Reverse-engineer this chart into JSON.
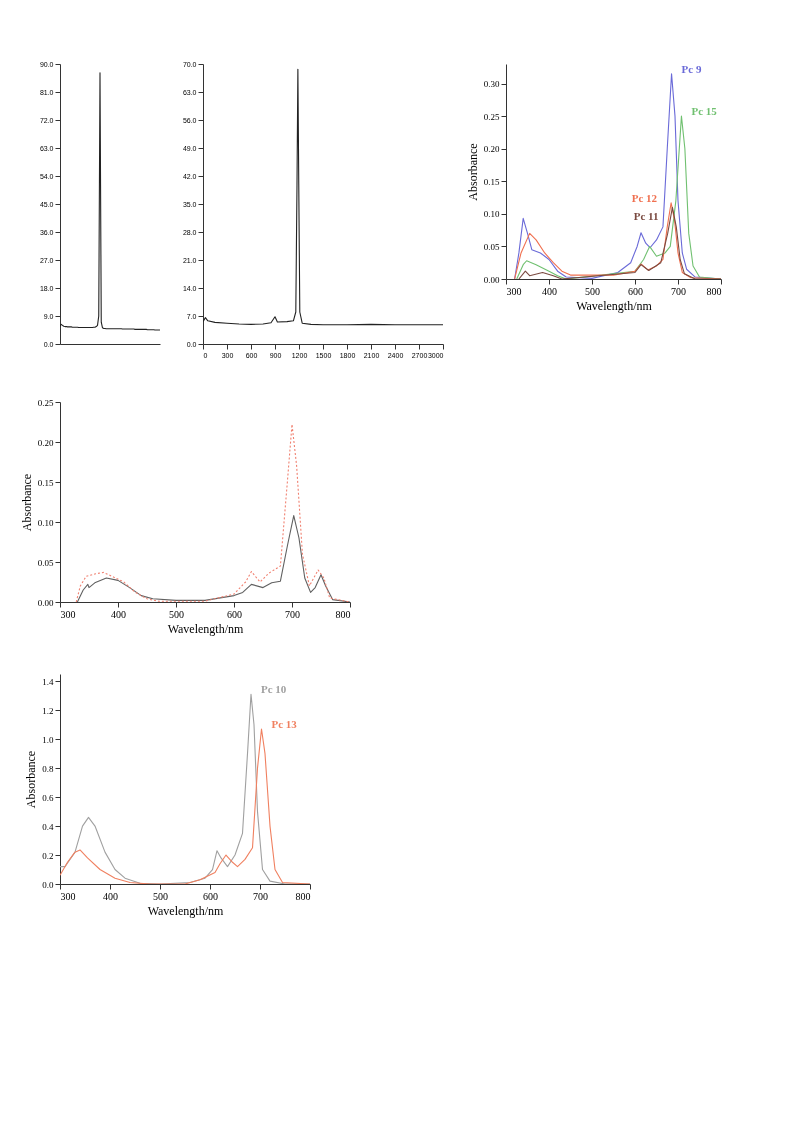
{
  "chart_data": [
    {
      "type": "line",
      "categories": [
        null,
        null,
        null,
        null,
        null,
        null,
        null,
        null,
        null,
        null,
        null,
        null,
        null,
        null,
        null,
        null,
        null,
        null,
        null,
        null,
        null,
        null,
        null,
        null,
        null,
        null,
        null,
        null,
        null,
        null,
        null,
        null,
        null,
        null,
        null,
        null,
        null,
        null,
        null,
        null,
        null,
        null,
        null,
        null,
        null,
        null,
        null,
        null,
        null,
        null,
        null,
        null,
        null,
        null,
        null,
        null,
        null,
        null,
        null,
        null,
        null,
        null,
        null,
        null,
        null,
        null,
        null,
        null,
        null,
        null,
        null,
        null,
        null,
        null,
        null,
        null,
        null,
        null,
        null,
        null,
        null
      ],
      "ylim": [
        0,
        90
      ],
      "yticks": [
        {
          "value": 0,
          "label": "0.0"
        },
        {
          "value": 9,
          "label": "9.0"
        },
        {
          "value": 18,
          "label": "18.0"
        },
        {
          "value": 27,
          "label": "27.0"
        },
        {
          "value": 36,
          "label": "36.0"
        },
        {
          "value": 45,
          "label": "45.0"
        },
        {
          "value": 54,
          "label": "54.0"
        },
        {
          "value": 63,
          "label": "63.0"
        },
        {
          "value": 72,
          "label": "72.0"
        },
        {
          "value": 81,
          "label": "81.0"
        },
        {
          "value": 90,
          "label": "90.0"
        }
      ],
      "tick_labels": "y",
      "series": [
        {
          "color": "#222222",
          "values": [
            5.8,
            6.3,
            6.0,
            5.7,
            5.6,
            5.6,
            5.5,
            5.5,
            5.5,
            5.5,
            5.4,
            5.4,
            5.4,
            5.4,
            5.4,
            5.3,
            5.3,
            5.3,
            5.3,
            5.3,
            5.3,
            5.3,
            5.3,
            5.3,
            5.3,
            5.3,
            5.3,
            5.4,
            5.4,
            5.6,
            6.0,
            9.0,
            87.2,
            7.0,
            5.2,
            5.0,
            5.0,
            4.9,
            4.9,
            4.9,
            4.9,
            4.9,
            4.9,
            4.9,
            4.9,
            4.9,
            4.9,
            4.9,
            4.9,
            4.9,
            4.8,
            4.8,
            4.8,
            4.8,
            4.8,
            4.8,
            4.8,
            4.8,
            4.8,
            4.8,
            4.7,
            4.7,
            4.7,
            4.7,
            4.7,
            4.7,
            4.7,
            4.7,
            4.7,
            4.7,
            4.6,
            4.6,
            4.6,
            4.6,
            4.6,
            4.6,
            4.5,
            4.5,
            4.5,
            4.5,
            4.5
          ]
        }
      ]
    },
    {
      "type": "line",
      "xlim": [
        0,
        3000
      ],
      "xticks": [
        0,
        300,
        600,
        900,
        1200,
        1500,
        1800,
        2100,
        2400,
        2700,
        3000
      ],
      "ylim": [
        0,
        70
      ],
      "yticks": [
        {
          "value": 0,
          "label": "0.0"
        },
        {
          "value": 7,
          "label": "7.0"
        },
        {
          "value": 14,
          "label": "14.0"
        },
        {
          "value": 21,
          "label": "21.0"
        },
        {
          "value": 28,
          "label": "28.0"
        },
        {
          "value": 35,
          "label": "35.0"
        },
        {
          "value": 42,
          "label": "42.0"
        },
        {
          "value": 49,
          "label": "49.0"
        },
        {
          "value": 56,
          "label": "56.0"
        },
        {
          "value": 63,
          "label": "63.0"
        },
        {
          "value": 70,
          "label": "70.0"
        }
      ],
      "series": [
        {
          "color": "#222222",
          "x": [
            0,
            30,
            60,
            150,
            300,
            450,
            600,
            750,
            850,
            900,
            930,
            1050,
            1130,
            1160,
            1175,
            1186,
            1197,
            1210,
            1240,
            1350,
            1500,
            1800,
            2100,
            2400,
            2700,
            3000
          ],
          "values": [
            5.6,
            6.6,
            5.8,
            5.4,
            5.2,
            5.0,
            4.9,
            5.0,
            5.3,
            6.8,
            5.5,
            5.6,
            5.8,
            8.0,
            40,
            68.7,
            40,
            8,
            5.2,
            4.9,
            4.8,
            4.8,
            4.9,
            4.8,
            4.8,
            4.8
          ]
        }
      ]
    },
    {
      "type": "line",
      "xlabel": "Wavelength/nm",
      "ylabel": "Absorbance",
      "xlim": [
        300,
        800
      ],
      "xticks": [
        300,
        400,
        500,
        600,
        700,
        800
      ],
      "ylim": [
        0,
        0.33
      ],
      "yticks": [
        {
          "value": 0,
          "label": "0.00"
        },
        {
          "value": 0.05,
          "label": "0.05"
        },
        {
          "value": 0.1,
          "label": "0.10"
        },
        {
          "value": 0.15,
          "label": "0.15"
        },
        {
          "value": 0.2,
          "label": "0.20"
        },
        {
          "value": 0.25,
          "label": "0.25"
        },
        {
          "value": 0.3,
          "label": "0.30"
        }
      ],
      "series": [
        {
          "name": "Pc 9",
          "color": "#6a6ad8",
          "x": [
            320,
            330,
            340,
            350,
            360,
            380,
            400,
            420,
            440,
            500,
            560,
            590,
            605,
            614,
            625,
            635,
            650,
            665,
            675,
            685,
            693,
            700,
            710,
            720,
            740,
            800
          ],
          "values": [
            0,
            0.04,
            0.093,
            0.07,
            0.045,
            0.04,
            0.03,
            0.012,
            0.003,
            0.001,
            0.01,
            0.025,
            0.05,
            0.071,
            0.055,
            0.048,
            0.06,
            0.08,
            0.2,
            0.315,
            0.25,
            0.12,
            0.04,
            0.015,
            0.003,
            0
          ]
        },
        {
          "name": "Pc 15",
          "color": "#70c070",
          "x": [
            325,
            340,
            348,
            370,
            400,
            420,
            440,
            600,
            620,
            634,
            650,
            670,
            682,
            695,
            708,
            716,
            725,
            735,
            750,
            800
          ],
          "values": [
            0,
            0.022,
            0.028,
            0.022,
            0.012,
            0.005,
            0,
            0.012,
            0.03,
            0.05,
            0.035,
            0.04,
            0.05,
            0.12,
            0.25,
            0.2,
            0.07,
            0.02,
            0.003,
            0
          ]
        },
        {
          "name": "Pc 12",
          "color": "#f07050",
          "x": [
            320,
            335,
            355,
            370,
            390,
            410,
            430,
            450,
            550,
            600,
            614,
            630,
            650,
            665,
            675,
            684,
            692,
            700,
            710,
            730,
            800
          ],
          "values": [
            0,
            0.04,
            0.07,
            0.06,
            0.04,
            0.025,
            0.012,
            0.006,
            0.006,
            0.012,
            0.023,
            0.014,
            0.02,
            0.03,
            0.08,
            0.117,
            0.09,
            0.04,
            0.01,
            0.002,
            0
          ]
        },
        {
          "name": "Pc 11",
          "color": "#7a4a40",
          "x": [
            330,
            345,
            355,
            385,
            410,
            430,
            600,
            614,
            632,
            660,
            676,
            687,
            696,
            705,
            715,
            740,
            800
          ],
          "values": [
            0,
            0.012,
            0.005,
            0.01,
            0.005,
            0,
            0.01,
            0.022,
            0.013,
            0.025,
            0.07,
            0.11,
            0.08,
            0.03,
            0.008,
            0,
            0
          ]
        }
      ]
    },
    {
      "type": "line",
      "xlabel": "Wavelength/nm",
      "ylabel": "Absorbance",
      "xlim": [
        300,
        800
      ],
      "xticks": [
        300,
        400,
        500,
        600,
        700,
        800
      ],
      "ylim": [
        0,
        0.25
      ],
      "yticks": [
        {
          "value": 0,
          "label": "0.00"
        },
        {
          "value": 0.05,
          "label": "0.05"
        },
        {
          "value": 0.1,
          "label": "0.10"
        },
        {
          "value": 0.15,
          "label": "0.15"
        },
        {
          "value": 0.2,
          "label": "0.20"
        },
        {
          "value": 0.25,
          "label": "0.25"
        }
      ],
      "series": [
        {
          "color": "#606060",
          "line_style": "solid",
          "x": [
            330,
            340,
            348,
            350,
            360,
            380,
            400,
            420,
            440,
            460,
            500,
            550,
            600,
            615,
            630,
            650,
            665,
            680,
            692,
            703,
            712,
            722,
            732,
            740,
            750,
            758,
            770,
            800
          ],
          "values": [
            0,
            0.015,
            0.022,
            0.018,
            0.024,
            0.03,
            0.027,
            0.018,
            0.008,
            0.004,
            0.002,
            0.002,
            0.008,
            0.012,
            0.022,
            0.018,
            0.024,
            0.026,
            0.07,
            0.108,
            0.08,
            0.03,
            0.012,
            0.018,
            0.034,
            0.02,
            0.003,
            0
          ]
        },
        {
          "color": "#f08070",
          "line_style": "dotted",
          "x": [
            328,
            335,
            345,
            360,
            375,
            390,
            410,
            430,
            450,
            470,
            550,
            600,
            620,
            630,
            645,
            660,
            680,
            692,
            700,
            708,
            718,
            730,
            745,
            755,
            765,
            800
          ],
          "values": [
            0,
            0.02,
            0.032,
            0.035,
            0.037,
            0.032,
            0.025,
            0.012,
            0.004,
            0.001,
            0.001,
            0.01,
            0.025,
            0.038,
            0.025,
            0.036,
            0.045,
            0.15,
            0.222,
            0.17,
            0.06,
            0.02,
            0.04,
            0.03,
            0.005,
            0
          ]
        }
      ]
    },
    {
      "type": "line",
      "xlabel": "Wavelength/nm",
      "ylabel": "Absorbance",
      "xlim": [
        300,
        800
      ],
      "xticks": [
        300,
        400,
        500,
        600,
        700,
        800
      ],
      "ylim": [
        0,
        1.45
      ],
      "yticks": [
        {
          "value": 0,
          "label": "0.0"
        },
        {
          "value": 0.2,
          "label": "0.2"
        },
        {
          "value": 0.4,
          "label": "0.4"
        },
        {
          "value": 0.6,
          "label": "0.6"
        },
        {
          "value": 0.8,
          "label": "0.8"
        },
        {
          "value": 1,
          "label": "1.0"
        },
        {
          "value": 1.2,
          "label": "1.2"
        },
        {
          "value": 1.4,
          "label": "1.4"
        }
      ],
      "series": [
        {
          "name": "Pc 10",
          "color": "#a0a0a0",
          "x": [
            300,
            310,
            330,
            345,
            357,
            370,
            390,
            410,
            430,
            460,
            500,
            560,
            590,
            605,
            614,
            622,
            635,
            650,
            665,
            675,
            682,
            688,
            695,
            705,
            720,
            750,
            800
          ],
          "values": [
            0.12,
            0.12,
            0.22,
            0.4,
            0.46,
            0.4,
            0.22,
            0.1,
            0.04,
            0.005,
            0,
            0.01,
            0.04,
            0.1,
            0.23,
            0.18,
            0.12,
            0.2,
            0.35,
            0.9,
            1.31,
            1.1,
            0.5,
            0.1,
            0.02,
            0,
            0
          ]
        },
        {
          "name": "Pc 13",
          "color": "#f08060",
          "x": [
            300,
            315,
            330,
            340,
            355,
            380,
            410,
            440,
            480,
            550,
            580,
            610,
            620,
            632,
            645,
            655,
            670,
            685,
            695,
            703,
            710,
            720,
            730,
            745,
            800
          ],
          "values": [
            0.06,
            0.15,
            0.22,
            0.235,
            0.18,
            0.1,
            0.04,
            0.01,
            0,
            0,
            0.03,
            0.08,
            0.14,
            0.2,
            0.15,
            0.12,
            0.17,
            0.25,
            0.8,
            1.07,
            0.9,
            0.4,
            0.1,
            0.01,
            0
          ]
        }
      ]
    }
  ]
}
